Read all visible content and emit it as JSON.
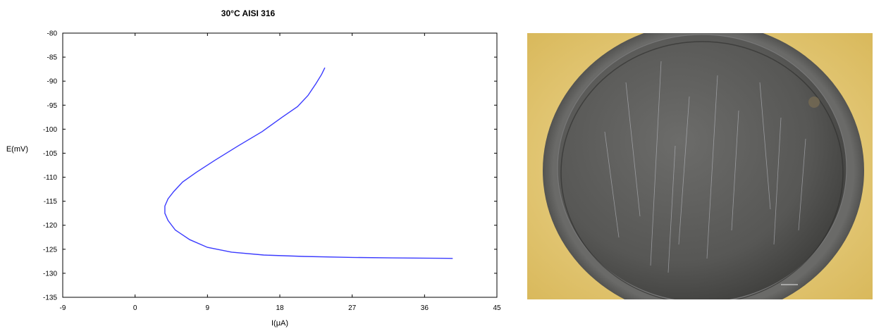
{
  "chart_data": {
    "type": "line",
    "title": "30°C AISI 316",
    "xlabel": "I(μA)",
    "ylabel": "E(mV)",
    "xlim": [
      -9,
      45
    ],
    "ylim": [
      -135,
      -80
    ],
    "xticks": [
      -9,
      0,
      9,
      18,
      27,
      36,
      45
    ],
    "yticks": [
      -80,
      -85,
      -90,
      -95,
      -100,
      -105,
      -110,
      -115,
      -120,
      -125,
      -130,
      -135
    ],
    "grid": false,
    "line_color": "#3b3bff",
    "series": [
      {
        "x": [
          23.6,
          23.2,
          22.5,
          21.5,
          20.2,
          18.3,
          15.8,
          12.8,
          9.9,
          7.6,
          5.9,
          4.8,
          4.1,
          3.7,
          3.7,
          4.1,
          5.0,
          6.8,
          9.0,
          12.0,
          16.0,
          21.0,
          27.0,
          32.0,
          36.0,
          39.5
        ],
        "y": [
          -87.2,
          -88.6,
          -90.5,
          -93.0,
          -95.3,
          -97.5,
          -100.5,
          -103.5,
          -106.5,
          -109.0,
          -111.0,
          -113.0,
          -114.5,
          -116.0,
          -117.5,
          -119.0,
          -121.0,
          -123.0,
          -124.6,
          -125.6,
          -126.2,
          -126.5,
          -126.7,
          -126.8,
          -126.85,
          -126.9
        ]
      }
    ]
  },
  "photo": {
    "background_color": "#e9cf83",
    "disc_color": "#5e5e5c",
    "description_icon": "metal-specimen-image"
  }
}
